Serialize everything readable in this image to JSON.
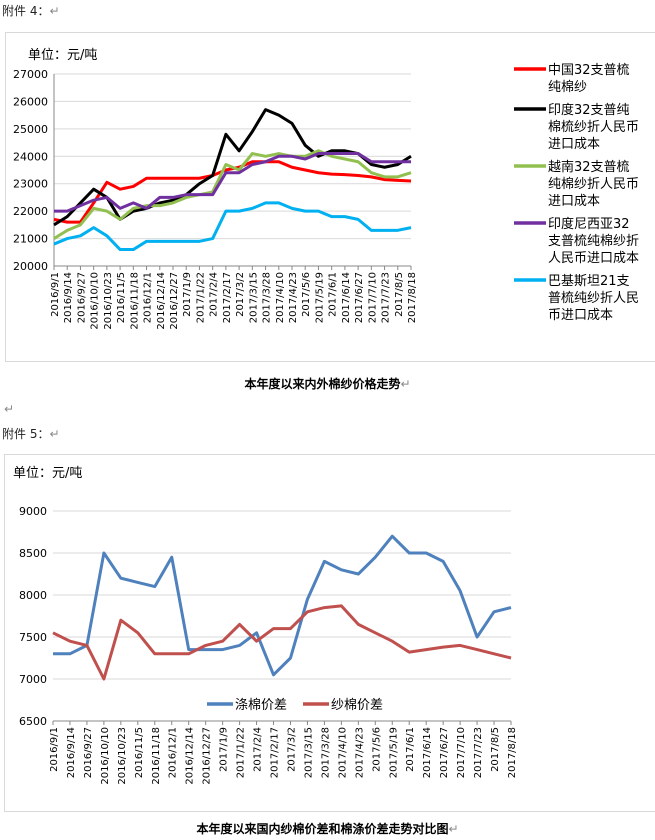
{
  "doc": {
    "attachment4": "附件 4：",
    "attachment5": "附件 5：",
    "return_mark": "↵",
    "caption1": "本年度以来内外棉纱价格走势",
    "caption2": "本年度以来国内纱棉价差和棉涤价差走势对比图"
  },
  "chart_data": [
    {
      "type": "line",
      "unit_label": "单位：元/吨",
      "ylim": [
        20000,
        27000
      ],
      "yticks": [
        20000,
        21000,
        22000,
        23000,
        24000,
        25000,
        26000,
        27000
      ],
      "grid": true,
      "legend": "right",
      "categories": [
        "2016/9/1",
        "2016/9/14",
        "2016/9/27",
        "2016/10/10",
        "2016/10/23",
        "2016/11/5",
        "2016/11/18",
        "2016/12/1",
        "2016/12/14",
        "2016/12/27",
        "2017/1/9",
        "2017/1/22",
        "2017/2/4",
        "2017/2/17",
        "2017/3/2",
        "2017/3/15",
        "2017/3/28",
        "2017/4/10",
        "2017/4/23",
        "2017/5/6",
        "2017/5/19",
        "2017/6/1",
        "2017/6/14",
        "2017/6/27",
        "2017/7/10",
        "2017/7/23",
        "2017/8/5",
        "2017/8/18"
      ],
      "series": [
        {
          "name": "中国32支普梳纯棉纱",
          "color": "#ff0000",
          "values": [
            21700,
            21600,
            21600,
            22300,
            23050,
            22800,
            22900,
            23200,
            23200,
            23200,
            23200,
            23200,
            23300,
            23500,
            23600,
            23800,
            23800,
            23800,
            23600,
            23500,
            23400,
            23350,
            23330,
            23300,
            23250,
            23150,
            23120,
            23100
          ]
        },
        {
          "name": "印度32支普纯棉梳纱折人民币进口成本",
          "color": "#000000",
          "values": [
            21500,
            21800,
            22300,
            22800,
            22500,
            21700,
            22000,
            22100,
            22300,
            22400,
            22600,
            23000,
            23300,
            24800,
            24200,
            24900,
            25700,
            25500,
            25200,
            24400,
            24000,
            24200,
            24200,
            24100,
            23700,
            23600,
            23700,
            24000
          ]
        },
        {
          "name": "越南32支普梳纯棉纱折人民币进口成本",
          "color": "#92c050",
          "values": [
            21000,
            21300,
            21500,
            22100,
            22000,
            21700,
            22100,
            22200,
            22200,
            22300,
            22500,
            22600,
            22700,
            23700,
            23500,
            24100,
            24000,
            24100,
            24000,
            24000,
            24200,
            24000,
            23900,
            23800,
            23400,
            23250,
            23250,
            23400
          ]
        },
        {
          "name": "印度尼西亚32支普梳纯棉纱折人民币进口成本",
          "color": "#7030a0",
          "values": [
            22000,
            22000,
            22200,
            22400,
            22500,
            22100,
            22300,
            22100,
            22500,
            22500,
            22600,
            22600,
            22600,
            23400,
            23400,
            23700,
            23800,
            24000,
            24000,
            23900,
            24100,
            24100,
            24100,
            24100,
            23800,
            23800,
            23800,
            23800
          ]
        },
        {
          "name": "巴基斯坦21支普梳纯纱折人民币进口成本",
          "color": "#00b0f0",
          "values": [
            20800,
            21000,
            21100,
            21400,
            21100,
            20600,
            20600,
            20900,
            20900,
            20900,
            20900,
            20900,
            21000,
            22000,
            22000,
            22100,
            22300,
            22300,
            22100,
            22000,
            22000,
            21800,
            21800,
            21700,
            21300,
            21300,
            21300,
            21400
          ]
        }
      ]
    },
    {
      "type": "line",
      "unit_label": "单位：元/吨",
      "ylim": [
        6500,
        9000
      ],
      "yticks": [
        6500,
        7000,
        7500,
        8000,
        8500,
        9000
      ],
      "grid": true,
      "legend": "bottom-inside",
      "categories": [
        "2016/9/1",
        "2016/9/14",
        "2016/9/27",
        "2016/10/10",
        "2016/10/23",
        "2016/11/5",
        "2016/11/18",
        "2016/12/1",
        "2016/12/14",
        "2016/12/27",
        "2017/1/9",
        "2017/1/22",
        "2017/2/4",
        "2017/2/17",
        "2017/3/2",
        "2017/3/15",
        "2017/3/28",
        "2017/4/10",
        "2017/4/23",
        "2017/5/6",
        "2017/5/19",
        "2017/6/1",
        "2017/6/14",
        "2017/6/27",
        "2017/7/10",
        "2017/7/23",
        "2017/8/5",
        "2017/8/18"
      ],
      "series": [
        {
          "name": "涤棉价差",
          "color": "#4f81bd",
          "values": [
            7300,
            7300,
            7400,
            8500,
            8200,
            8150,
            8100,
            8450,
            7350,
            7350,
            7350,
            7400,
            7550,
            7050,
            7250,
            7950,
            8400,
            8300,
            8250,
            8450,
            8700,
            8500,
            8500,
            8400,
            8050,
            7500,
            7800,
            7850
          ]
        },
        {
          "name": "纱棉价差",
          "color": "#c0504d",
          "values": [
            7550,
            7450,
            7400,
            7000,
            7700,
            7550,
            7300,
            7300,
            7300,
            7400,
            7450,
            7650,
            7450,
            7600,
            7600,
            7800,
            7850,
            7870,
            7650,
            7550,
            7450,
            7320,
            7350,
            7380,
            7400,
            7350,
            7300,
            7250
          ]
        }
      ]
    }
  ]
}
